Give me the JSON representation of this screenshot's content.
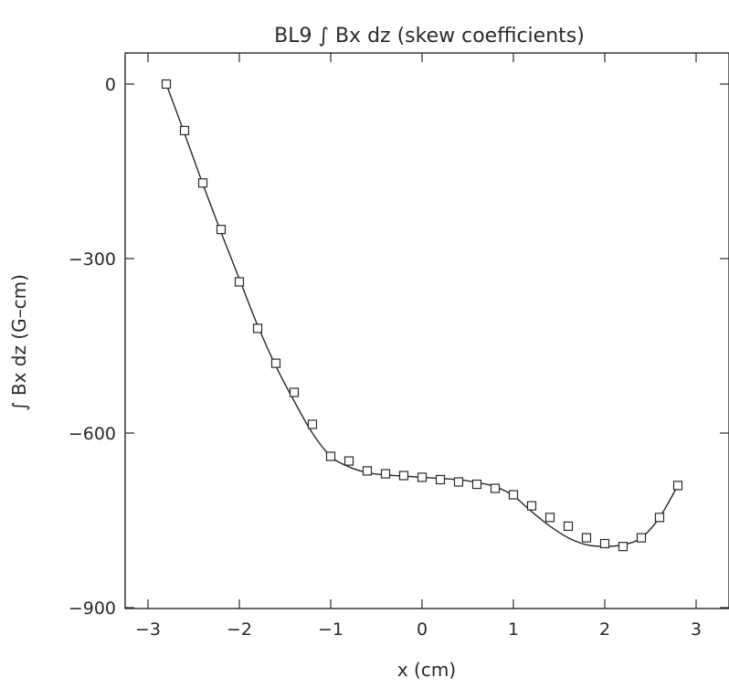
{
  "chart_data": {
    "type": "scatter",
    "title": "BL9 ∫ Bx dz (skew coefficients)",
    "xlabel": "x (cm)",
    "ylabel": "∫ Bx dz (G–cm)",
    "xlim": [
      -3.4,
      3.4
    ],
    "ylim": [
      -900,
      50
    ],
    "xticks": [
      -3,
      -2,
      -1,
      0,
      1,
      2,
      3
    ],
    "yticks": [
      0,
      -300,
      -600,
      -900
    ],
    "xtick_labels": [
      "−3",
      "−2",
      "−1",
      "0",
      "1",
      "2",
      "3"
    ],
    "ytick_labels": [
      "0",
      "−300",
      "−600",
      "−900"
    ],
    "grid": false,
    "legend": "none",
    "marker": "open-square",
    "series": [
      {
        "x": [
          -2.8,
          -2.6,
          -2.4,
          -2.2,
          -2.0,
          -1.8,
          -1.6,
          -1.4,
          -1.2,
          -1.0,
          -0.8,
          -0.6,
          -0.4,
          -0.2,
          0.0,
          0.2,
          0.4,
          0.6,
          0.8,
          1.0,
          1.2,
          1.4,
          1.6,
          1.8,
          2.0,
          2.2,
          2.4,
          2.6,
          2.8
        ],
        "y": [
          0,
          -80,
          -170,
          -250,
          -340,
          -420,
          -480,
          -530,
          -585,
          -640,
          -648,
          -665,
          -670,
          -673,
          -676,
          -680,
          -684,
          -688,
          -695,
          -706,
          -725,
          -745,
          -760,
          -780,
          -790,
          -795,
          -780,
          -745,
          -690
        ]
      }
    ],
    "fit_curve": {
      "x": [
        -2.8,
        -2.6,
        -2.4,
        -2.2,
        -2.0,
        -1.8,
        -1.6,
        -1.4,
        -1.2,
        -1.0,
        -0.8,
        -0.6,
        -0.4,
        -0.2,
        0.0,
        0.2,
        0.4,
        0.6,
        0.8,
        1.0,
        1.2,
        1.4,
        1.6,
        1.8,
        2.0,
        2.2,
        2.4,
        2.6,
        2.8
      ],
      "y": [
        0,
        -85,
        -172,
        -255,
        -335,
        -415,
        -485,
        -545,
        -600,
        -640,
        -658,
        -668,
        -672,
        -674,
        -676,
        -678,
        -680,
        -685,
        -692,
        -708,
        -735,
        -760,
        -780,
        -792,
        -795,
        -792,
        -780,
        -745,
        -690
      ]
    }
  }
}
